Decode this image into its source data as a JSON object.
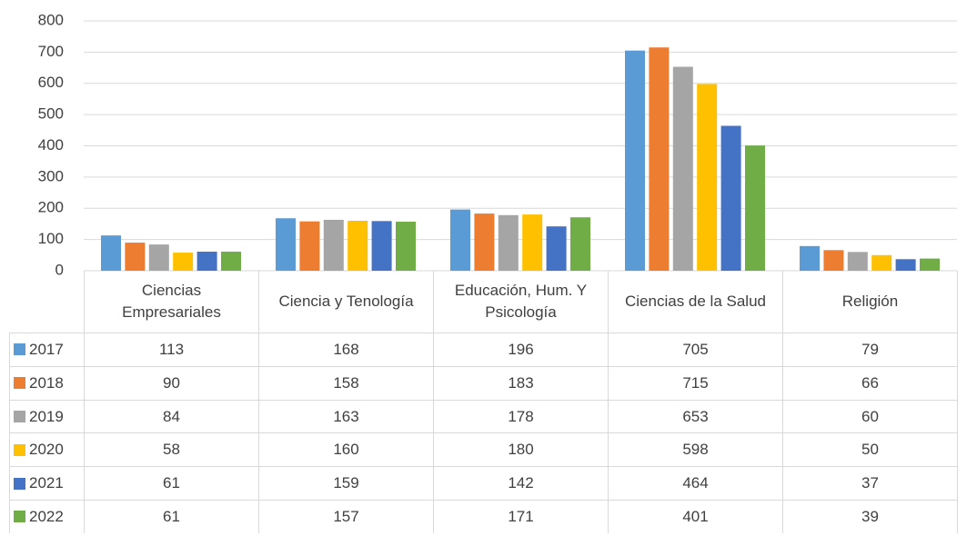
{
  "chart_data": {
    "type": "bar",
    "categories": [
      "Ciencias Empresariales",
      "Ciencia y Tenología",
      "Educación, Hum. Y Psicología",
      "Ciencias de la Salud",
      "Religión"
    ],
    "series": [
      {
        "name": "2017",
        "color": "#5b9bd5",
        "values": [
          113,
          168,
          196,
          705,
          79
        ]
      },
      {
        "name": "2018",
        "color": "#ed7d31",
        "values": [
          90,
          158,
          183,
          715,
          66
        ]
      },
      {
        "name": "2019",
        "color": "#a5a5a5",
        "values": [
          84,
          163,
          178,
          653,
          60
        ]
      },
      {
        "name": "2020",
        "color": "#ffc000",
        "values": [
          58,
          160,
          180,
          598,
          50
        ]
      },
      {
        "name": "2021",
        "color": "#4472c4",
        "values": [
          61,
          159,
          142,
          464,
          37
        ]
      },
      {
        "name": "2022",
        "color": "#70ad47",
        "values": [
          61,
          157,
          171,
          401,
          39
        ]
      }
    ],
    "ylim": [
      0,
      800
    ],
    "yticks": [
      0,
      100,
      200,
      300,
      400,
      500,
      600,
      700,
      800
    ],
    "grid": true
  }
}
